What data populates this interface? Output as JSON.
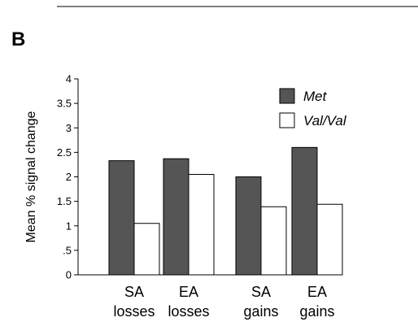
{
  "panel_label": "B",
  "chart_data": {
    "type": "bar",
    "categories": [
      [
        "SA",
        "losses"
      ],
      [
        "EA",
        "losses"
      ],
      [
        "SA",
        "gains"
      ],
      [
        "EA",
        "gains"
      ]
    ],
    "series": [
      {
        "name": "Met",
        "values": [
          2.33,
          2.37,
          2.0,
          2.6
        ],
        "color": "#555555"
      },
      {
        "name": "Val/Val",
        "values": [
          1.05,
          2.05,
          1.39,
          1.44
        ],
        "color": "#ffffff"
      }
    ],
    "ylabel": "Mean % signal change",
    "ylim": [
      0,
      4
    ],
    "yticks": [
      "0",
      ".5",
      "1",
      "1.5",
      "2",
      "2.5",
      "3",
      "3.5",
      "4"
    ],
    "legend_position": "top-right",
    "grid": false
  }
}
